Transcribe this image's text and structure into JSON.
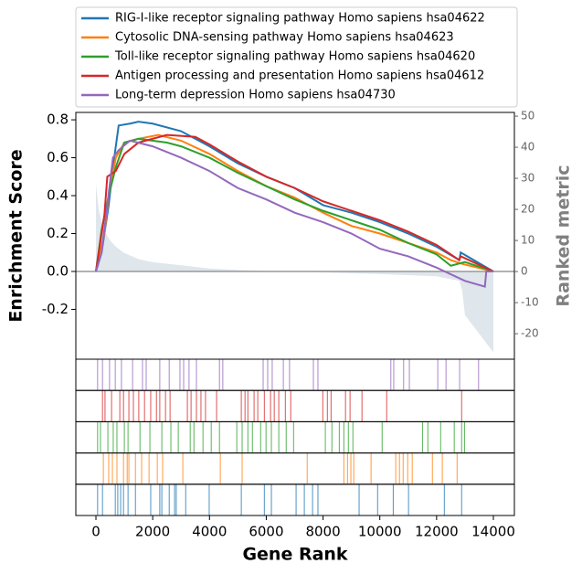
{
  "chart_data": {
    "type": "line",
    "xlabel": "Gene Rank",
    "ylabel": "Enrichment Score",
    "y2label": "Ranked metric",
    "xlim": [
      -708,
      14740
    ],
    "ylim": [
      -0.463,
      0.839
    ],
    "y2lim": [
      -28.2,
      51.2
    ],
    "xticks": [
      0,
      2000,
      4000,
      6000,
      8000,
      10000,
      12000,
      14000
    ],
    "yticks": [
      -0.2,
      {
        "value": 0,
        "label": "0.0"
      },
      0.2,
      0.4,
      0.6,
      0.8
    ],
    "y2ticks": [
      -20,
      -10,
      0,
      10,
      20,
      30,
      40,
      50
    ],
    "legend": "top",
    "ranked_metric": {
      "axis": "y2",
      "color": "#b0c0d0",
      "x": [
        0,
        100,
        200,
        300,
        500,
        700,
        1000,
        1500,
        2000,
        3000,
        4000,
        5000,
        6000,
        8000,
        10000,
        12000,
        12800,
        12900,
        13000,
        13500,
        14000
      ],
      "values": [
        28,
        20,
        16,
        13,
        10,
        8,
        6,
        4,
        3,
        2,
        1,
        0.5,
        0.2,
        -0.3,
        -0.8,
        -1.5,
        -3,
        -6,
        -14,
        -20,
        -26
      ]
    },
    "series": [
      {
        "name": "RIG-I-like receptor signaling pathway Homo sapiens hsa04622",
        "color": "#1f77b4",
        "x": [
          0,
          200,
          300,
          450,
          600,
          800,
          1200,
          1500,
          2000,
          3000,
          4000,
          5000,
          6000,
          7000,
          8000,
          9000,
          10000,
          11000,
          12000,
          12800,
          12850,
          14000
        ],
        "values": [
          0,
          0.1,
          0.2,
          0.35,
          0.55,
          0.77,
          0.78,
          0.79,
          0.78,
          0.74,
          0.66,
          0.57,
          0.5,
          0.44,
          0.35,
          0.31,
          0.26,
          0.2,
          0.13,
          0.06,
          0.1,
          0
        ],
        "hits": [
          60,
          230,
          680,
          770,
          870,
          970,
          1130,
          1390,
          1930,
          2250,
          2320,
          2580,
          2770,
          2830,
          3160,
          3990,
          5120,
          5930,
          6180,
          7050,
          7340,
          7630,
          7820,
          9270,
          9920,
          10470,
          11010,
          12270,
          12880
        ]
      },
      {
        "name": "Cytosolic DNA-sensing pathway Homo sapiens hsa04623",
        "color": "#ff7f0e",
        "x": [
          0,
          300,
          450,
          700,
          1000,
          1500,
          2200,
          3000,
          4000,
          5000,
          6000,
          7000,
          8000,
          9000,
          10000,
          11000,
          12000,
          12500,
          12900,
          14000
        ],
        "values": [
          0,
          0.2,
          0.4,
          0.6,
          0.68,
          0.7,
          0.72,
          0.69,
          0.62,
          0.53,
          0.45,
          0.39,
          0.31,
          0.24,
          0.2,
          0.15,
          0.1,
          0.06,
          0.04,
          0
        ],
        "hits": [
          260,
          450,
          580,
          740,
          970,
          1100,
          1160,
          1390,
          1610,
          1870,
          2160,
          2350,
          3060,
          4380,
          5150,
          7440,
          8730,
          8860,
          8980,
          9080,
          9690,
          10560,
          10690,
          10820,
          10980,
          11140,
          11850,
          12200,
          12720
        ]
      },
      {
        "name": "Toll-like receptor signaling pathway Homo sapiens hsa04620",
        "color": "#2ca02c",
        "x": [
          0,
          200,
          450,
          700,
          1000,
          1500,
          2500,
          3000,
          4000,
          5000,
          6000,
          7000,
          8000,
          9000,
          10000,
          11000,
          12000,
          12500,
          13000,
          14000
        ],
        "values": [
          0,
          0.22,
          0.4,
          0.55,
          0.68,
          0.7,
          0.68,
          0.66,
          0.6,
          0.52,
          0.45,
          0.38,
          0.32,
          0.27,
          0.22,
          0.15,
          0.09,
          0.03,
          0.05,
          0
        ],
        "hits": [
          60,
          160,
          420,
          610,
          740,
          1000,
          1130,
          1550,
          1900,
          2320,
          2640,
          2900,
          3320,
          3450,
          3770,
          4060,
          4350,
          4960,
          5150,
          5350,
          5510,
          5800,
          5990,
          6180,
          6440,
          6700,
          6960,
          8080,
          8310,
          8570,
          8730,
          8890,
          9050,
          10080,
          11500,
          11690,
          12140,
          12620,
          12880,
          12980
        ]
      },
      {
        "name": "Antigen processing and presentation Homo sapiens hsa04612",
        "color": "#d62728",
        "x": [
          0,
          300,
          400,
          700,
          1000,
          1500,
          2500,
          3500,
          4000,
          5000,
          6000,
          7000,
          8000,
          9000,
          10000,
          11000,
          12000,
          12800,
          12850,
          14000
        ],
        "values": [
          0,
          0.3,
          0.5,
          0.53,
          0.62,
          0.68,
          0.72,
          0.71,
          0.67,
          0.58,
          0.5,
          0.44,
          0.37,
          0.32,
          0.27,
          0.21,
          0.14,
          0.06,
          0.08,
          0
        ],
        "hits": [
          230,
          320,
          550,
          840,
          970,
          1160,
          1320,
          1510,
          1710,
          1930,
          2130,
          2250,
          2450,
          2610,
          3220,
          3350,
          3540,
          3700,
          3860,
          4250,
          5120,
          5250,
          5350,
          5570,
          5700,
          5930,
          6150,
          6280,
          6440,
          6670,
          6860,
          7990,
          8150,
          8280,
          8790,
          8950,
          9370,
          10240,
          12880
        ]
      },
      {
        "name": "Long-term depression Homo sapiens hsa04730",
        "color": "#9467bd",
        "x": [
          0,
          200,
          400,
          600,
          800,
          1200,
          2000,
          3000,
          4000,
          5000,
          6000,
          7000,
          8000,
          9000,
          10000,
          11000,
          12000,
          13000,
          13700,
          13750,
          14000
        ],
        "values": [
          0,
          0.1,
          0.35,
          0.6,
          0.64,
          0.69,
          0.66,
          0.6,
          0.53,
          0.44,
          0.38,
          0.31,
          0.26,
          0.2,
          0.12,
          0.08,
          0.02,
          -0.05,
          -0.08,
          0,
          0
        ],
        "hits": [
          60,
          230,
          480,
          680,
          900,
          1290,
          1640,
          1770,
          2250,
          2580,
          2960,
          3090,
          3280,
          3540,
          4350,
          4470,
          5890,
          6050,
          6210,
          6600,
          6820,
          7660,
          7820,
          10390,
          10490,
          10840,
          11040,
          12040,
          12330,
          12810,
          13480
        ]
      }
    ]
  }
}
